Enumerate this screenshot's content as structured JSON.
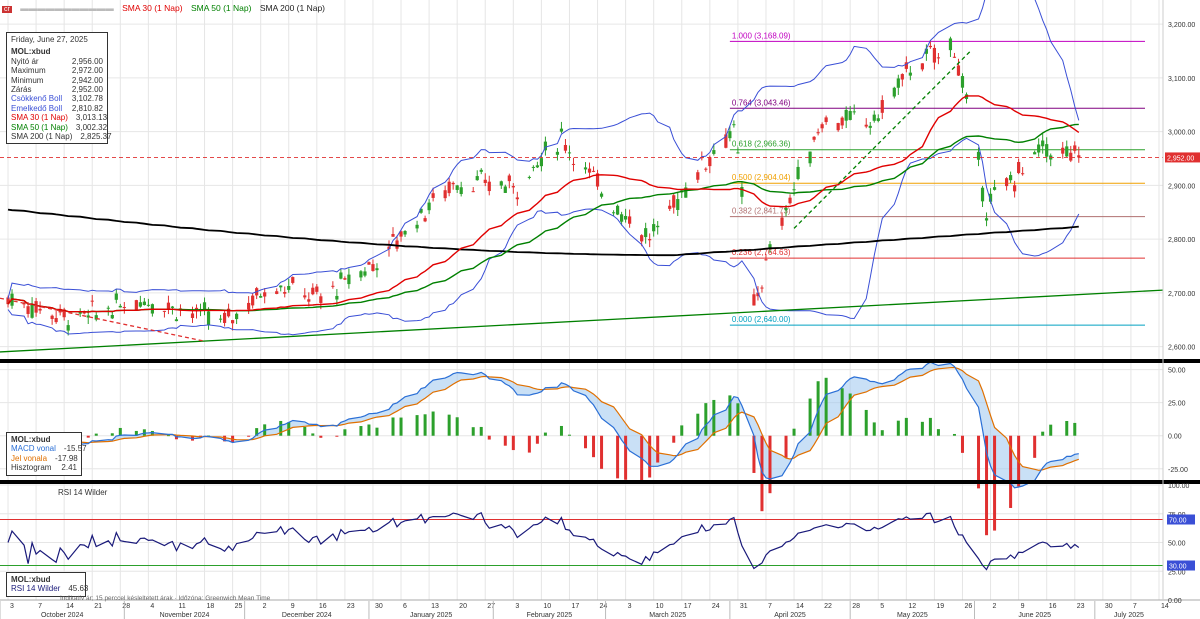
{
  "legend_top": {
    "ticker_badge": "cr",
    "items": [
      {
        "label": "SMA 30 (1 Nap)",
        "color": "#e00000"
      },
      {
        "label": "SMA 50 (1 Nap)",
        "color": "#008000"
      },
      {
        "label": "SMA 200 (1 Nap)",
        "color": "#222222"
      }
    ]
  },
  "info_main": {
    "date": "Friday, June 27, 2025",
    "symbol": "MOL:xbud",
    "rows": [
      {
        "label": "Nyitó ár",
        "value": "2,956.00",
        "color": "#333333"
      },
      {
        "label": "Maximum",
        "value": "2,972.00",
        "color": "#333333"
      },
      {
        "label": "Minimum",
        "value": "2,942.00",
        "color": "#333333"
      },
      {
        "label": "Zárás",
        "value": "2,952.00",
        "color": "#333333"
      },
      {
        "label": "Csökkenő Boll",
        "value": "3,102.78",
        "color": "#3a4fd6"
      },
      {
        "label": "Emelkedő Boll",
        "value": "2,810.82",
        "color": "#3a4fd6"
      },
      {
        "label": "SMA 30 (1 Nap)",
        "value": "3,013.13",
        "color": "#e00000"
      },
      {
        "label": "SMA 50 (1 Nap)",
        "value": "3,002.32",
        "color": "#008000"
      },
      {
        "label": "SMA 200 (1 Nap)",
        "value": "2,825.37",
        "color": "#333333"
      }
    ]
  },
  "info_macd": {
    "symbol": "MOL:xbud",
    "rows": [
      {
        "label": "MACD vonal",
        "value": "-15.57",
        "color": "#2a6fd6"
      },
      {
        "label": "Jel vonala",
        "value": "-17.98",
        "color": "#e07000"
      },
      {
        "label": "Hisztogram",
        "value": "2.41",
        "color": "#333333"
      }
    ]
  },
  "info_rsi": {
    "symbol": "MOL:xbud",
    "row": {
      "label": "RSI 14 Wilder",
      "value": "45.63"
    }
  },
  "rsi_legend": "RSI 14 Wilder",
  "footer_note": "Indikatív ár; 15 perccel késleltetett árak · Időzóna: Greenwich Mean Time",
  "fib_labels": [
    "1.000 (3,168.09)",
    "0.764 (3,043.46)",
    "0.618 (2,966.36)",
    "0.500 (2,904.04)",
    "0.382 (2,841.73)",
    "0.236 (2,764.63)",
    "0.000 (2,640.00)"
  ],
  "price_axis_labels": [
    "3,200.00",
    "3,100.00",
    "3,000.00",
    "2,900.00",
    "2,800.00",
    "2,700.00",
    "2,600.00"
  ],
  "last_price_label": "2,952.00",
  "macd_axis_labels": [
    "50.00",
    "25.00",
    "0.00",
    "-25.00"
  ],
  "rsi_axis_labels": [
    "100.00",
    "75.00",
    "50.00",
    "25.00",
    "0.00"
  ],
  "rsi_level_labels": [
    "70.00",
    "30.00"
  ],
  "day_ticks": [
    "3",
    "7",
    "14",
    "21",
    "28",
    "4",
    "11",
    "18",
    "25",
    "2",
    "9",
    "16",
    "23",
    "30",
    "6",
    "13",
    "20",
    "27",
    "3",
    "10",
    "17",
    "24",
    "3",
    "10",
    "17",
    "24",
    "31",
    "7",
    "14",
    "22",
    "28",
    "5",
    "12",
    "19",
    "26",
    "2",
    "9",
    "16",
    "23",
    "30",
    "7",
    "14"
  ],
  "month_labels": [
    "October 2024",
    "November 2024",
    "December 2024",
    "January 2025",
    "February 2025",
    "March 2025",
    "April 2025",
    "May 2025",
    "June 2025",
    "July 2025"
  ],
  "colors": {
    "up": "#2ca02c",
    "down": "#e03030",
    "sma30": "#e00000",
    "sma50": "#008000",
    "sma200": "#000000",
    "boll": "#3a4fd6",
    "fib": "#c000c0",
    "trend": "#008000",
    "macd": "#2a6fd6",
    "signal": "#e07000",
    "rsi": "#1a1a7a"
  },
  "chart_data": [
    {
      "type": "candlestick",
      "title": "MOL:xbud",
      "x_range": [
        "2024-10-01",
        "2025-07-18"
      ],
      "ylim": [
        2575,
        3245
      ],
      "ohlc_anchors": [
        {
          "date": "2024-10-03",
          "close": 2690
        },
        {
          "date": "2024-10-20",
          "close": 2650
        },
        {
          "date": "2024-11-06",
          "close": 2690
        },
        {
          "date": "2024-11-26",
          "close": 2645
        },
        {
          "date": "2024-12-08",
          "close": 2720
        },
        {
          "date": "2024-12-20",
          "close": 2690
        },
        {
          "date": "2025-01-03",
          "close": 2760
        },
        {
          "date": "2025-01-13",
          "close": 2840
        },
        {
          "date": "2025-01-22",
          "close": 2905
        },
        {
          "date": "2025-02-07",
          "close": 2900
        },
        {
          "date": "2025-02-18",
          "close": 2990
        },
        {
          "date": "2025-02-27",
          "close": 2900
        },
        {
          "date": "2025-03-12",
          "close": 2800
        },
        {
          "date": "2025-03-24",
          "close": 2930
        },
        {
          "date": "2025-04-02",
          "close": 3010
        },
        {
          "date": "2025-04-07",
          "close": 2680
        },
        {
          "date": "2025-04-14",
          "close": 2840
        },
        {
          "date": "2025-04-24",
          "close": 3020
        },
        {
          "date": "2025-05-07",
          "close": 3020
        },
        {
          "date": "2025-05-16",
          "close": 3120
        },
        {
          "date": "2025-05-27",
          "close": 3160
        },
        {
          "date": "2025-06-04",
          "close": 2860
        },
        {
          "date": "2025-06-18",
          "close": 2970
        },
        {
          "date": "2025-06-27",
          "close": 2952
        }
      ],
      "last_bar": {
        "date": "2025-06-27",
        "open": 2956.0,
        "high": 2972.0,
        "low": 2942.0,
        "close": 2952.0
      },
      "series": [
        {
          "name": "SMA 30 (1 Nap)",
          "last": 3013.13
        },
        {
          "name": "SMA 50 (1 Nap)",
          "last": 3002.32
        },
        {
          "name": "SMA 200 (1 Nap)",
          "last": 2825.37
        },
        {
          "name": "Csökkenő Boll",
          "last": 3102.78
        },
        {
          "name": "Emelkedő Boll",
          "last": 2810.82
        }
      ],
      "fibonacci": {
        "from_date": "2025-04-01",
        "levels": [
          {
            "ratio": 1.0,
            "value": 3168.09
          },
          {
            "ratio": 0.764,
            "value": 3043.46
          },
          {
            "ratio": 0.618,
            "value": 2966.36
          },
          {
            "ratio": 0.5,
            "value": 2904.04
          },
          {
            "ratio": 0.382,
            "value": 2841.73
          },
          {
            "ratio": 0.236,
            "value": 2764.63
          },
          {
            "ratio": 0.0,
            "value": 2640.0
          }
        ]
      },
      "trendlines": [
        {
          "style": "solid",
          "from": {
            "date": "2024-10-01",
            "value": 2590
          },
          "to": {
            "date": "2025-07-18",
            "value": 2705
          }
        },
        {
          "style": "dashed",
          "from": {
            "date": "2025-04-17",
            "value": 2820
          },
          "to": {
            "date": "2025-05-31",
            "value": 3150
          }
        },
        {
          "style": "dashed-red",
          "from": {
            "date": "2024-10-01",
            "value": 2690
          },
          "to": {
            "date": "2024-11-21",
            "value": 2610
          }
        }
      ],
      "horizontal_lines": [
        {
          "value": 2952.0,
          "style": "dashed-red"
        }
      ]
    },
    {
      "type": "line",
      "title": "MACD",
      "ylim": [
        -35,
        55
      ],
      "series": [
        {
          "name": "MACD vonal",
          "last": -15.57
        },
        {
          "name": "Jel vonala",
          "last": -17.98
        },
        {
          "name": "Hisztogram",
          "last": 2.41
        }
      ]
    },
    {
      "type": "line",
      "title": "RSI 14 Wilder",
      "ylim": [
        0,
        100
      ],
      "levels": [
        70,
        30
      ],
      "series": [
        {
          "name": "RSI 14 Wilder",
          "last": 45.63
        }
      ]
    }
  ]
}
